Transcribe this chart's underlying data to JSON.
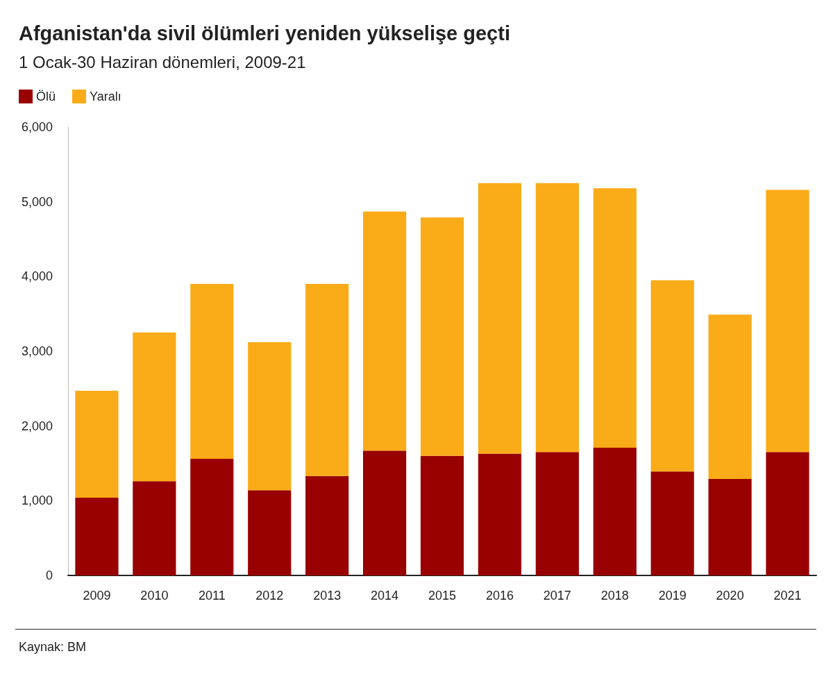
{
  "chart_data": {
    "type": "bar",
    "title": "Afganistan'da sivil ölümleri yeniden yükselişe geçti",
    "subtitle": "1 Ocak-30 Haziran dönemleri, 2009-21",
    "categories": [
      "2009",
      "2010",
      "2011",
      "2012",
      "2013",
      "2014",
      "2015",
      "2016",
      "2017",
      "2018",
      "2019",
      "2020",
      "2021"
    ],
    "series": [
      {
        "name": "Ölü",
        "color": "#990000",
        "values": [
          1040,
          1260,
          1560,
          1140,
          1330,
          1670,
          1600,
          1630,
          1650,
          1710,
          1390,
          1290,
          1650
        ]
      },
      {
        "name": "Yaralı",
        "color": "#faab18",
        "values": [
          1430,
          1990,
          2340,
          1980,
          2570,
          3200,
          3190,
          3620,
          3600,
          3470,
          2560,
          2200,
          3510
        ]
      }
    ],
    "stacked": true,
    "ylim": [
      0,
      6000
    ],
    "yticks": [
      {
        "value": 0,
        "label": "0"
      },
      {
        "value": 1000,
        "label": "1,000"
      },
      {
        "value": 2000,
        "label": "2,000"
      },
      {
        "value": 3000,
        "label": "3,000"
      },
      {
        "value": 4000,
        "label": "4,000"
      },
      {
        "value": 5000,
        "label": "5,000"
      },
      {
        "value": 6000,
        "label": "6,000"
      }
    ],
    "grid": false,
    "legend": "top left",
    "annotations": [
      "Kaynak: BM"
    ]
  }
}
